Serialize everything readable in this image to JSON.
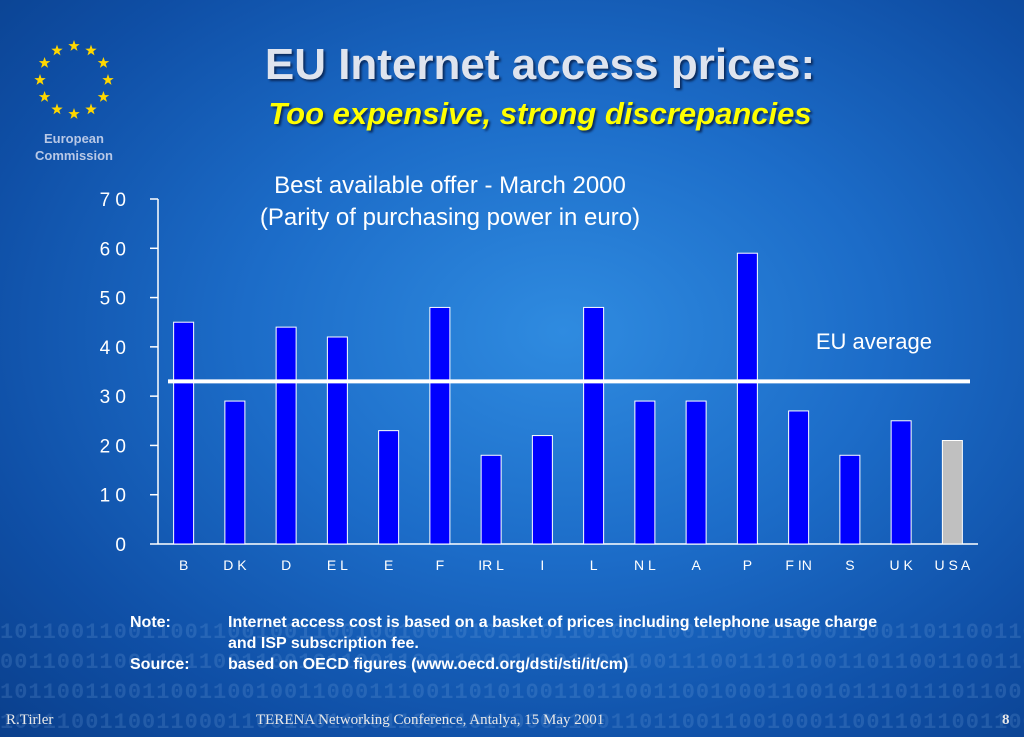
{
  "slide": {
    "title": "EU Internet access prices:",
    "subtitle": "Too expensive, strong discrepancies",
    "logo_text": "European Commission",
    "colors": {
      "bar": "#0000ff",
      "usa_bar": "#c0c0c0",
      "average_line": "#ffffff",
      "subtitle": "#ffff00"
    }
  },
  "chart_data": {
    "type": "bar",
    "title_line1": "Best available offer - March 2000",
    "title_line2": "(Parity of purchasing power in euro)",
    "categories": [
      "B",
      "D K",
      "D",
      "E L",
      "E",
      "F",
      "IR L",
      "I",
      "L",
      "N L",
      "A",
      "P",
      "F IN",
      "S",
      "U K",
      "U S A"
    ],
    "values": [
      45,
      29,
      44,
      42,
      23,
      48,
      18,
      22,
      48,
      29,
      29,
      59,
      27,
      18,
      25,
      21
    ],
    "ylim": [
      0,
      70
    ],
    "yticks": [
      "0",
      "1 0",
      "2 0",
      "3 0",
      "4 0",
      "5 0",
      "6 0",
      "7 0"
    ],
    "reference_line": {
      "label": "EU average",
      "value": 33
    },
    "highlight_category": "U S A",
    "xlabel": "",
    "ylabel": "",
    "grid": false
  },
  "notes": {
    "note_label": "Note:",
    "note_line1": "Internet access cost is based on a basket of prices including telephone usage charge",
    "note_line2": "and ISP subscription  fee.",
    "source_label": "Source:",
    "source_text": "based on OECD  figures (www.oecd.org/dsti/sti/it/cm)"
  },
  "footer": {
    "author": "R.Tirler",
    "event": "TERENA Networking Conference, Antalya, 15 May 2001",
    "page": "8"
  }
}
